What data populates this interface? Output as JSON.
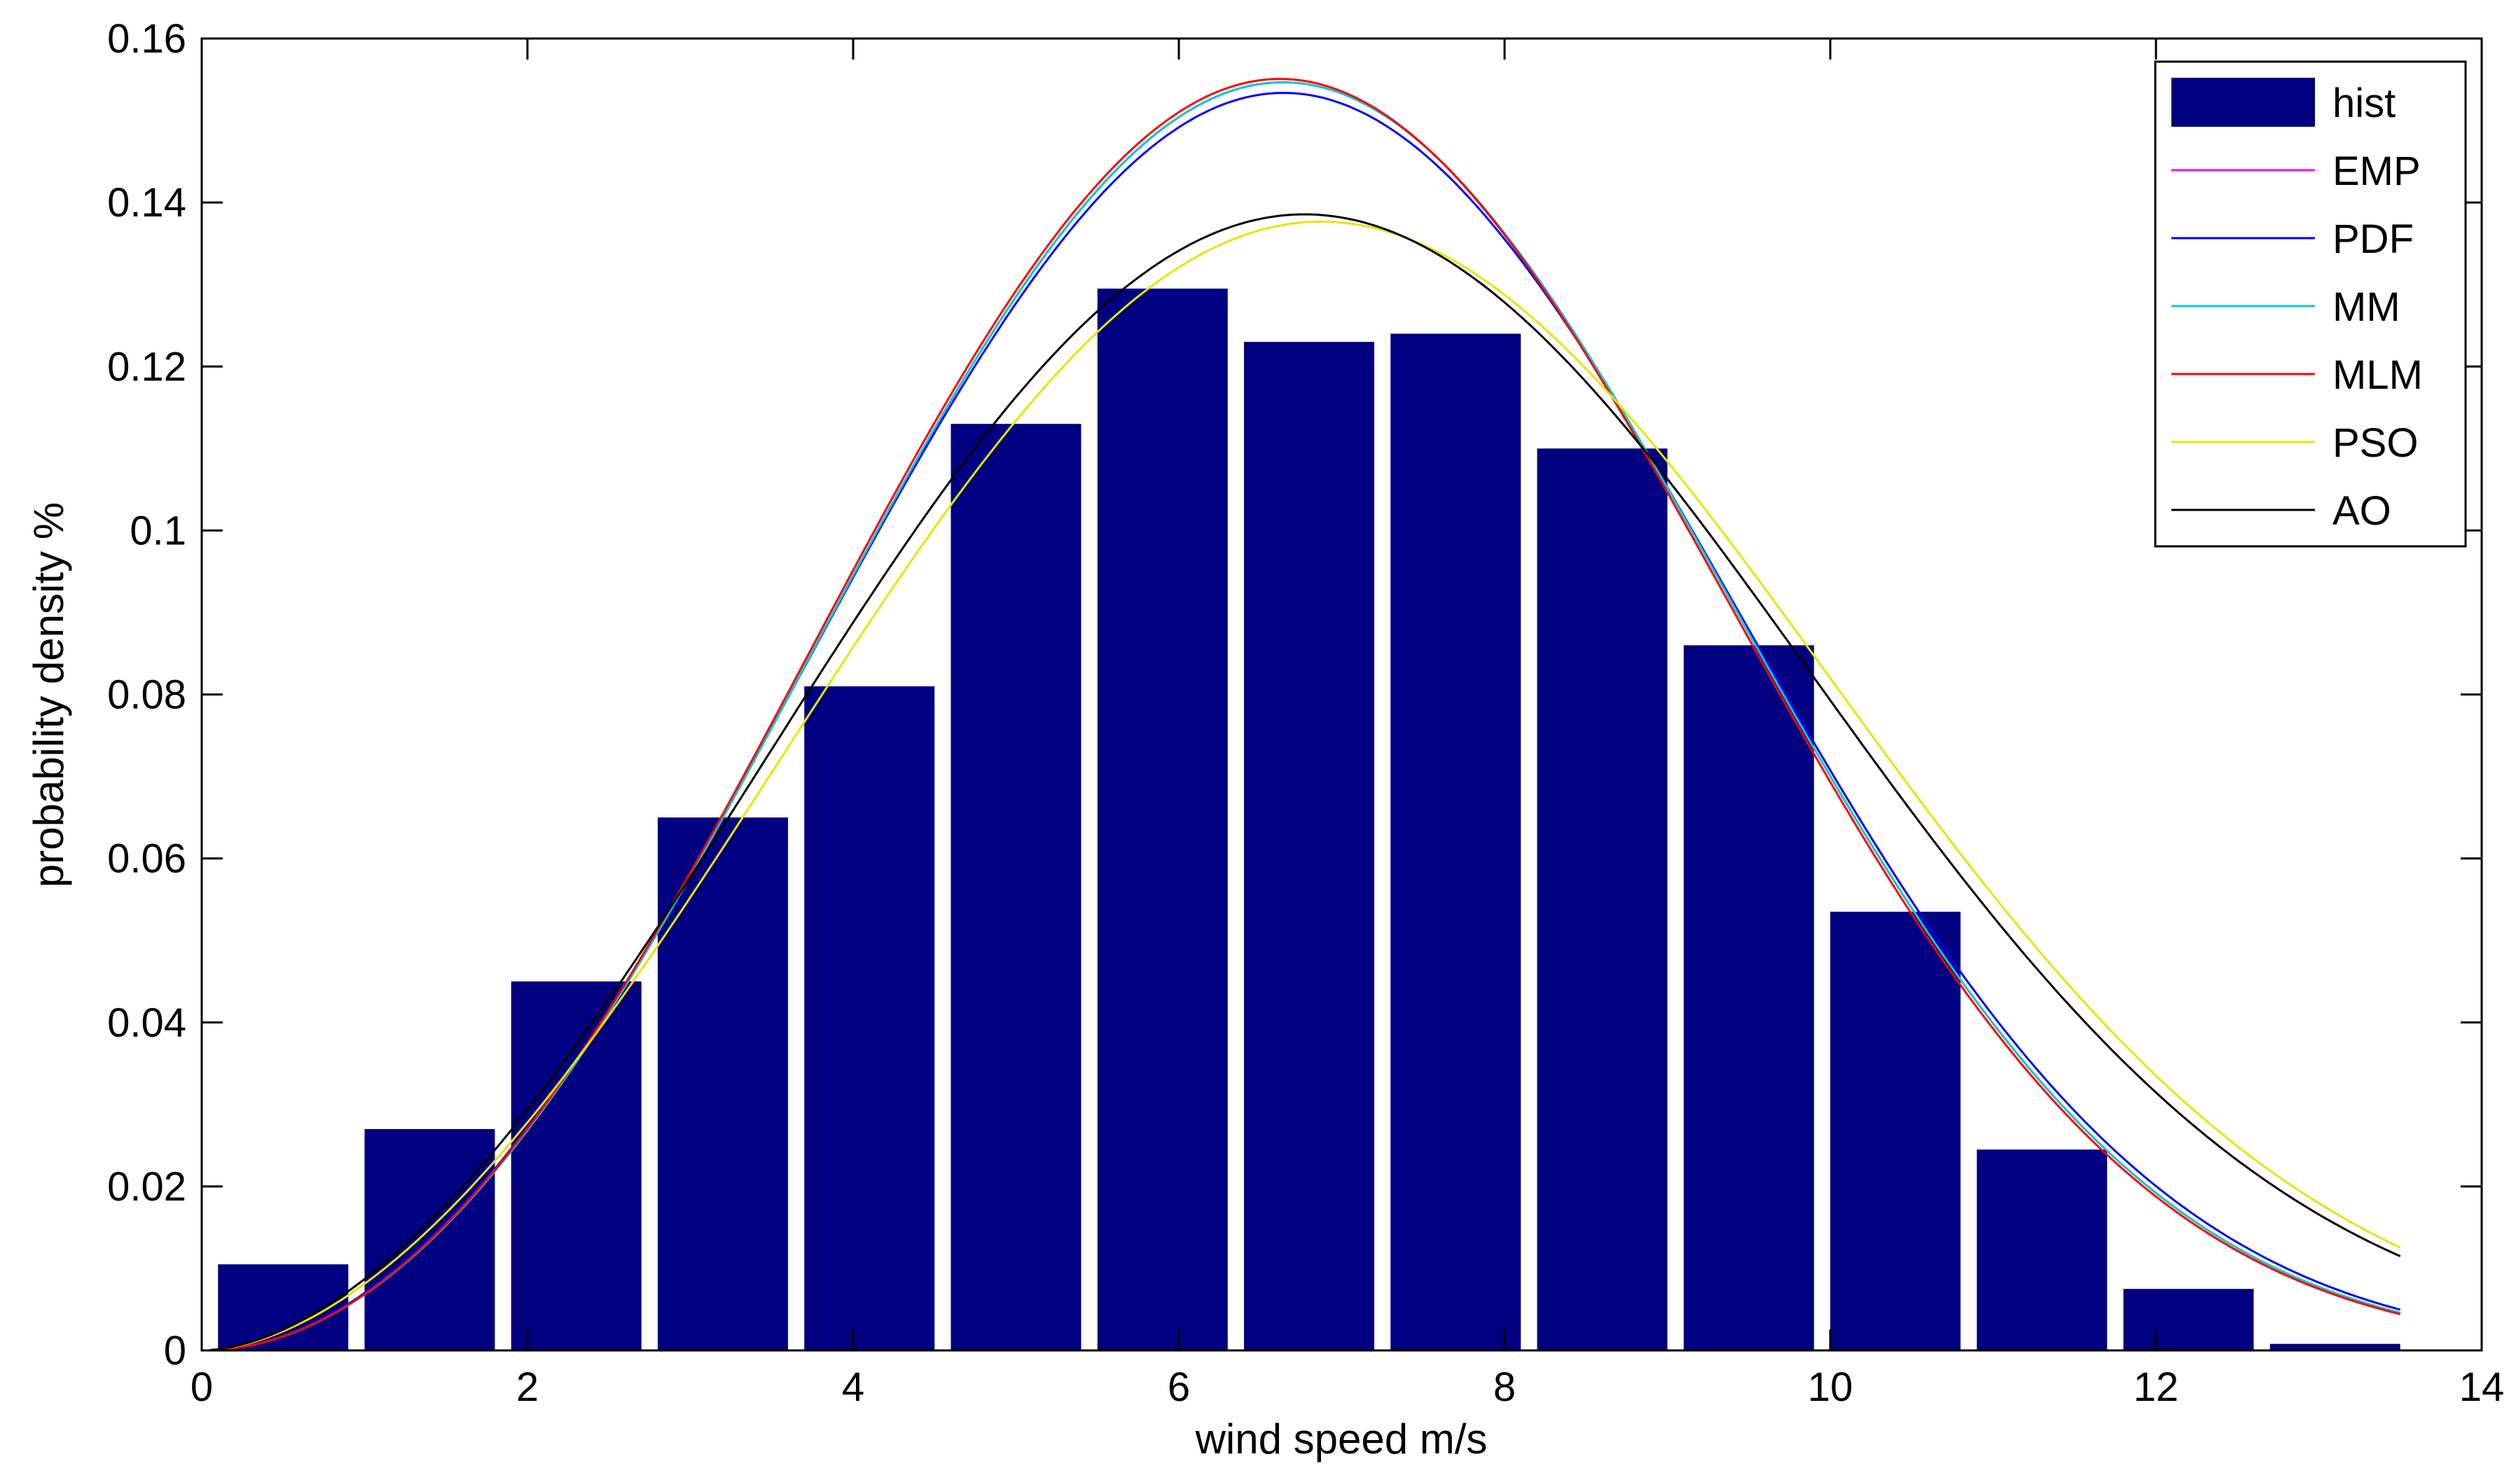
{
  "chart_data": {
    "type": "bar",
    "title": "",
    "xlabel": "wind speed m/s",
    "ylabel": "probability density %",
    "xlim": [
      0,
      14
    ],
    "ylim": [
      0,
      0.16
    ],
    "xticks": [
      "0",
      "2",
      "4",
      "6",
      "8",
      "10",
      "12",
      "14"
    ],
    "yticks": [
      "0",
      "0.02",
      "0.04",
      "0.06",
      "0.08",
      "0.1",
      "0.12",
      "0.14",
      "0.16"
    ],
    "grid": false,
    "legend_position": "top-right",
    "histogram": {
      "name": "hist",
      "color": "#000080",
      "x": [
        0.5,
        1.4,
        2.3,
        3.2,
        4.1,
        5.0,
        5.9,
        6.8,
        7.7,
        8.6,
        9.5,
        10.4,
        11.3,
        12.2,
        13.1
      ],
      "values": [
        0.0105,
        0.027,
        0.045,
        0.065,
        0.081,
        0.113,
        0.1295,
        0.123,
        0.124,
        0.11,
        0.086,
        0.0535,
        0.0245,
        0.0075,
        0.0008
      ]
    },
    "series": [
      {
        "name": "EMP",
        "color": "#ff00ff",
        "k": 3.0,
        "c": 7.6
      },
      {
        "name": "PDF",
        "color": "#0000ff",
        "k": 2.98,
        "c": 7.62
      },
      {
        "name": "MM",
        "color": "#00cccc",
        "k": 3.0,
        "c": 7.6
      },
      {
        "name": "MLM",
        "color": "#ff0000",
        "k": 3.0,
        "c": 7.58
      },
      {
        "name": "PSO",
        "color": "#e6e600",
        "k": 2.8,
        "c": 8.05
      },
      {
        "name": "AO",
        "color": "#000000",
        "k": 2.78,
        "c": 7.95
      }
    ],
    "curve_x_range": [
      0.05,
      13.5
    ]
  }
}
